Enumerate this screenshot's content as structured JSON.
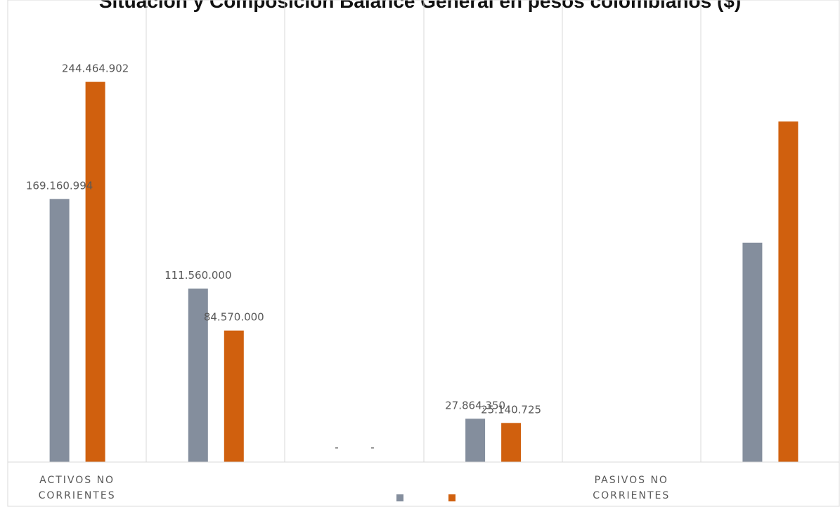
{
  "chart_data": {
    "type": "bar",
    "title": "Situación y Composición Balance General en pesos colombianos ($)",
    "xlabel": "",
    "ylabel": "",
    "ylim": [
      0,
      270000000
    ],
    "grid": {
      "horizontal": false,
      "vertical": true
    },
    "legend": {
      "placement": "bottom"
    },
    "categories": [
      [
        "ACTIVOS NO",
        "CORRIENTES"
      ],
      [],
      [],
      [],
      [
        "PASIVOS NO",
        "CORRIENTES"
      ],
      []
    ],
    "series": [
      {
        "color": "#848e9d",
        "values": [
          169160994,
          111560000,
          0,
          27864350,
          0,
          141000000
        ],
        "labels": [
          "169.160.994",
          "111.560.000",
          "-",
          "27.864.350",
          "",
          ""
        ]
      },
      {
        "color": "#d0600e",
        "values": [
          244464902,
          84570000,
          0,
          25140725,
          0,
          219000000
        ],
        "labels": [
          "244.464.902",
          "84.570.000",
          "-",
          "25.140.725",
          "",
          ""
        ]
      }
    ]
  }
}
